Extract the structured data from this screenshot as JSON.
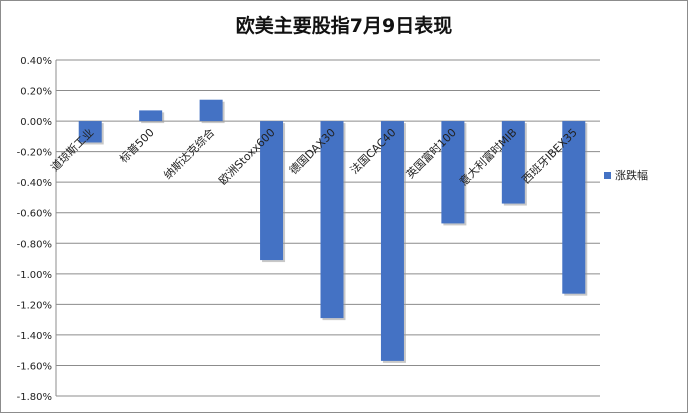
{
  "chart_data": {
    "type": "bar",
    "title": "欧美主要股指7月9日表现",
    "xlabel": "",
    "ylabel": "",
    "categories": [
      "道琼斯工业",
      "标普500",
      "纳斯达克综合",
      "欧洲Stoxx600",
      "德国DAX30",
      "法国CAC40",
      "英国富时100",
      "意大利富时MIB",
      "西班牙IBEX35"
    ],
    "series": [
      {
        "name": "涨跌幅",
        "values": [
          -0.14,
          0.07,
          0.14,
          -0.91,
          -1.29,
          -1.57,
          -0.67,
          -0.54,
          -1.13
        ],
        "color": "#4472C4"
      }
    ],
    "ylim": [
      -1.8,
      0.4
    ],
    "yticks": [
      "0.40%",
      "0.20%",
      "0.00%",
      "-0.20%",
      "-0.40%",
      "-0.60%",
      "-0.80%",
      "-1.00%",
      "-1.20%",
      "-1.40%",
      "-1.60%",
      "-1.80%"
    ],
    "tick_values": [
      0.4,
      0.2,
      0.0,
      -0.2,
      -0.4,
      -0.6,
      -0.8,
      -1.0,
      -1.2,
      -1.4,
      -1.6,
      -1.8
    ],
    "grid": true,
    "legend_position": "right"
  }
}
